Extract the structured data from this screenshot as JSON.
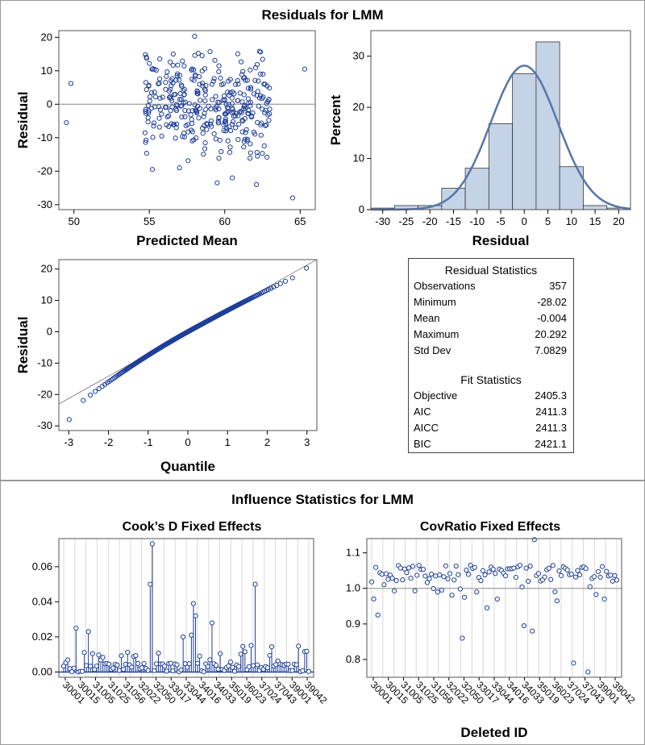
{
  "top_title": "Residuals for LMM",
  "bottom_title": "Influence Statistics for LMM",
  "stats": {
    "residual_header": "Residual Statistics",
    "residual_rows": [
      {
        "label": "Observations",
        "value": "357"
      },
      {
        "label": "Minimum",
        "value": "-28.02"
      },
      {
        "label": "Mean",
        "value": "-0.004"
      },
      {
        "label": "Maximum",
        "value": "20.292"
      },
      {
        "label": "Std Dev",
        "value": "7.0829"
      }
    ],
    "fit_header": "Fit Statistics",
    "fit_rows": [
      {
        "label": "Objective",
        "value": "2405.3"
      },
      {
        "label": "AIC",
        "value": "2411.3"
      },
      {
        "label": "AICC",
        "value": "2411.3"
      },
      {
        "label": "BIC",
        "value": "2421.1"
      }
    ]
  },
  "colors": {
    "marker": "#1f3f9a",
    "bar_fill": "#c5d3e6",
    "bar_stroke": "#333333",
    "curve": "#5576a8",
    "grid": "#d8d8d8"
  },
  "chart_data": [
    {
      "id": "scatter",
      "type": "scatter",
      "title": "",
      "xlabel": "Predicted Mean",
      "ylabel": "Residual",
      "xlim": [
        49,
        66
      ],
      "ylim": [
        -31.5,
        22
      ],
      "xticks": [
        50,
        55,
        60,
        65
      ],
      "yticks": [
        -30,
        -20,
        -10,
        0,
        10,
        20
      ],
      "reference_line": 0,
      "notable_points": [
        {
          "x": 49.8,
          "y": 6.2
        },
        {
          "x": 49.5,
          "y": -5.5
        },
        {
          "x": 65.3,
          "y": 10.5
        },
        {
          "x": 58.0,
          "y": 20.3
        },
        {
          "x": 64.5,
          "y": -28.0
        },
        {
          "x": 59.5,
          "y": -23.5
        },
        {
          "x": 62.1,
          "y": -24.0
        },
        {
          "x": 62.3,
          "y": 15.8
        },
        {
          "x": 55.2,
          "y": -19.5
        },
        {
          "x": 57.0,
          "y": -19.0
        },
        {
          "x": 58.5,
          "y": 14.5
        },
        {
          "x": 60.5,
          "y": -22.0
        }
      ],
      "n_points": 357
    },
    {
      "id": "histogram",
      "type": "bar",
      "xlabel": "Residual",
      "ylabel": "Percent",
      "xlim": [
        -32.5,
        22.5
      ],
      "ylim": [
        0,
        35
      ],
      "xticks": [
        -30,
        -25,
        -20,
        -15,
        -10,
        -5,
        0,
        5,
        10,
        15,
        20
      ],
      "yticks": [
        0,
        10,
        20,
        30
      ],
      "bin_width": 5,
      "bin_starts": [
        -32.5,
        -27.5,
        -22.5,
        -17.5,
        -12.5,
        -7.5,
        -2.5,
        2.5,
        7.5,
        12.5,
        17.5
      ],
      "values": [
        0.3,
        0.8,
        0.8,
        4.2,
        8.1,
        16.8,
        26.6,
        32.8,
        8.4,
        0.8,
        0.3
      ],
      "normal_curve": {
        "mean": -0.004,
        "sd": 7.0829
      }
    },
    {
      "id": "qq",
      "type": "scatter",
      "xlabel": "Quantile",
      "ylabel": "Residual",
      "xlim": [
        -3.25,
        3.25
      ],
      "ylim": [
        -31.5,
        23
      ],
      "xticks": [
        -3,
        -2,
        -1,
        0,
        1,
        2,
        3
      ],
      "yticks": [
        -30,
        -20,
        -10,
        0,
        10,
        20
      ],
      "reference_line": {
        "intercept": 0,
        "slope": 7.0829
      },
      "n_points": 357
    },
    {
      "id": "cooks",
      "type": "needle",
      "title": "Cook’s D Fixed Effects",
      "xlabel": "",
      "ylabel": "",
      "ylim": [
        -0.003,
        0.076
      ],
      "yticks": [
        0.0,
        0.02,
        0.04,
        0.06
      ],
      "ytick_labels": [
        "0.00",
        "0.02",
        "0.04",
        "0.06"
      ],
      "reference_line": 0,
      "n_points": 120,
      "tall_values": [
        {
          "index": 6,
          "value": 0.025
        },
        {
          "index": 12,
          "value": 0.023
        },
        {
          "index": 42,
          "value": 0.05
        },
        {
          "index": 43,
          "value": 0.073
        },
        {
          "index": 63,
          "value": 0.039
        },
        {
          "index": 64,
          "value": 0.032
        },
        {
          "index": 72,
          "value": 0.028
        },
        {
          "index": 93,
          "value": 0.05
        },
        {
          "index": 62,
          "value": 0.021
        },
        {
          "index": 58,
          "value": 0.02
        }
      ],
      "category_labels": [
        "30001",
        "30015",
        "31005",
        "31025",
        "31056",
        "32022",
        "32050",
        "33017",
        "33044",
        "34016",
        "34033",
        "35019",
        "36023",
        "37024",
        "37043",
        "39001",
        "39042"
      ]
    },
    {
      "id": "covratio",
      "type": "scatter",
      "title": "CovRatio Fixed Effects",
      "xlabel": "Deleted ID",
      "ylabel": "",
      "ylim": [
        0.75,
        1.14
      ],
      "yticks": [
        0.8,
        0.9,
        1.0,
        1.1
      ],
      "ytick_labels": [
        "0.8",
        "0.9",
        "1.0",
        "1.1"
      ],
      "reference_line": 1.0,
      "n_points": 120,
      "low_values": [
        {
          "index": 3,
          "value": 0.925
        },
        {
          "index": 44,
          "value": 0.86
        },
        {
          "index": 56,
          "value": 0.945
        },
        {
          "index": 74,
          "value": 0.895
        },
        {
          "index": 78,
          "value": 0.88
        },
        {
          "index": 90,
          "value": 0.965
        },
        {
          "index": 98,
          "value": 0.79
        },
        {
          "index": 105,
          "value": 0.765
        },
        {
          "index": 79,
          "value": 1.137
        },
        {
          "index": 113,
          "value": 0.97
        }
      ],
      "category_labels": [
        "30001",
        "30015",
        "31005",
        "31025",
        "31056",
        "32022",
        "32050",
        "33017",
        "33044",
        "34016",
        "34033",
        "35019",
        "36023",
        "37024",
        "37043",
        "39001",
        "39042"
      ]
    }
  ]
}
